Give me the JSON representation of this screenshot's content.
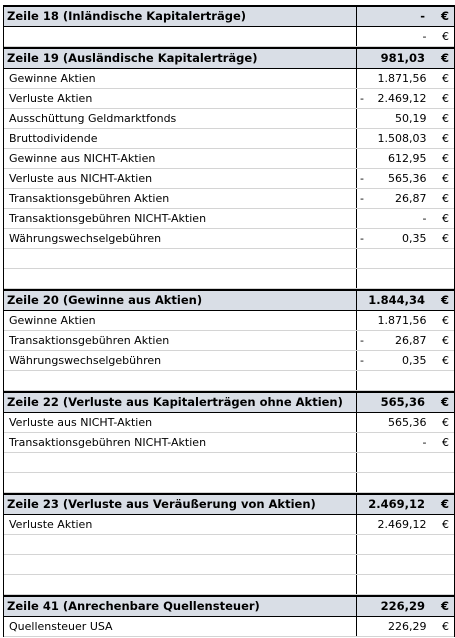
{
  "sections": [
    {
      "title": "Zeile 18 (Inländische Kapitalerträge)",
      "total": {
        "value": "- €"
      },
      "rows": [
        {
          "value": "- €"
        }
      ]
    },
    {
      "title": "Zeile 19 (Ausländische Kapitalerträge)",
      "total": {
        "value": "981,03 €"
      },
      "rows": [
        {
          "label": "Gewinne Aktien",
          "value": "1.871,56 €"
        },
        {
          "label": "Verluste Aktien",
          "sign": "-",
          "value": "2.469,12 €"
        },
        {
          "label": "Ausschüttung Geldmarktfonds",
          "value": "50,19 €"
        },
        {
          "label": "Bruttodividende",
          "value": "1.508,03 €"
        },
        {
          "label": "Gewinne aus NICHT-Aktien",
          "value": "612,95 €"
        },
        {
          "label": "Verluste aus NICHT-Aktien",
          "sign": "-",
          "value": "565,36 €"
        },
        {
          "label": "Transaktionsgebühren Aktien",
          "sign": "-",
          "value": "26,87 €"
        },
        {
          "label": "Transaktionsgebühren NICHT-Aktien",
          "value": "- €"
        },
        {
          "label": "Währungswechselgebühren",
          "sign": "-",
          "value": "0,35 €"
        }
      ]
    },
    {
      "title": "Zeile 20 (Gewinne aus Aktien)",
      "total": {
        "value": "1.844,34 €"
      },
      "rows": [
        {
          "label": "Gewinne Aktien",
          "value": "1.871,56 €"
        },
        {
          "label": "Transaktionsgebühren Aktien",
          "sign": "-",
          "value": "26,87 €"
        },
        {
          "label": "Währungswechselgebühren",
          "sign": "-",
          "value": "0,35 €"
        }
      ]
    },
    {
      "title": "Zeile 22 (Verluste aus Kapitalerträgen ohne Aktien)",
      "total": {
        "value": "565,36 €"
      },
      "rows": [
        {
          "label": "Verluste aus NICHT-Aktien",
          "value": "565,36 €"
        },
        {
          "label": "Transaktionsgebühren NICHT-Aktien",
          "value": "- €"
        }
      ]
    },
    {
      "title": "Zeile 23 (Verluste aus Veräußerung von Aktien)",
      "total": {
        "value": "2.469,12 €"
      },
      "rows": [
        {
          "label": "Verluste Aktien",
          "value": "2.469,12 €"
        }
      ]
    },
    {
      "title": "Zeile 41 (Anrechenbare Quellensteuer)",
      "total": {
        "value": "226,29 €"
      },
      "rows": [
        {
          "label": "Quellensteuer USA",
          "value": "226,29 €"
        }
      ]
    }
  ]
}
